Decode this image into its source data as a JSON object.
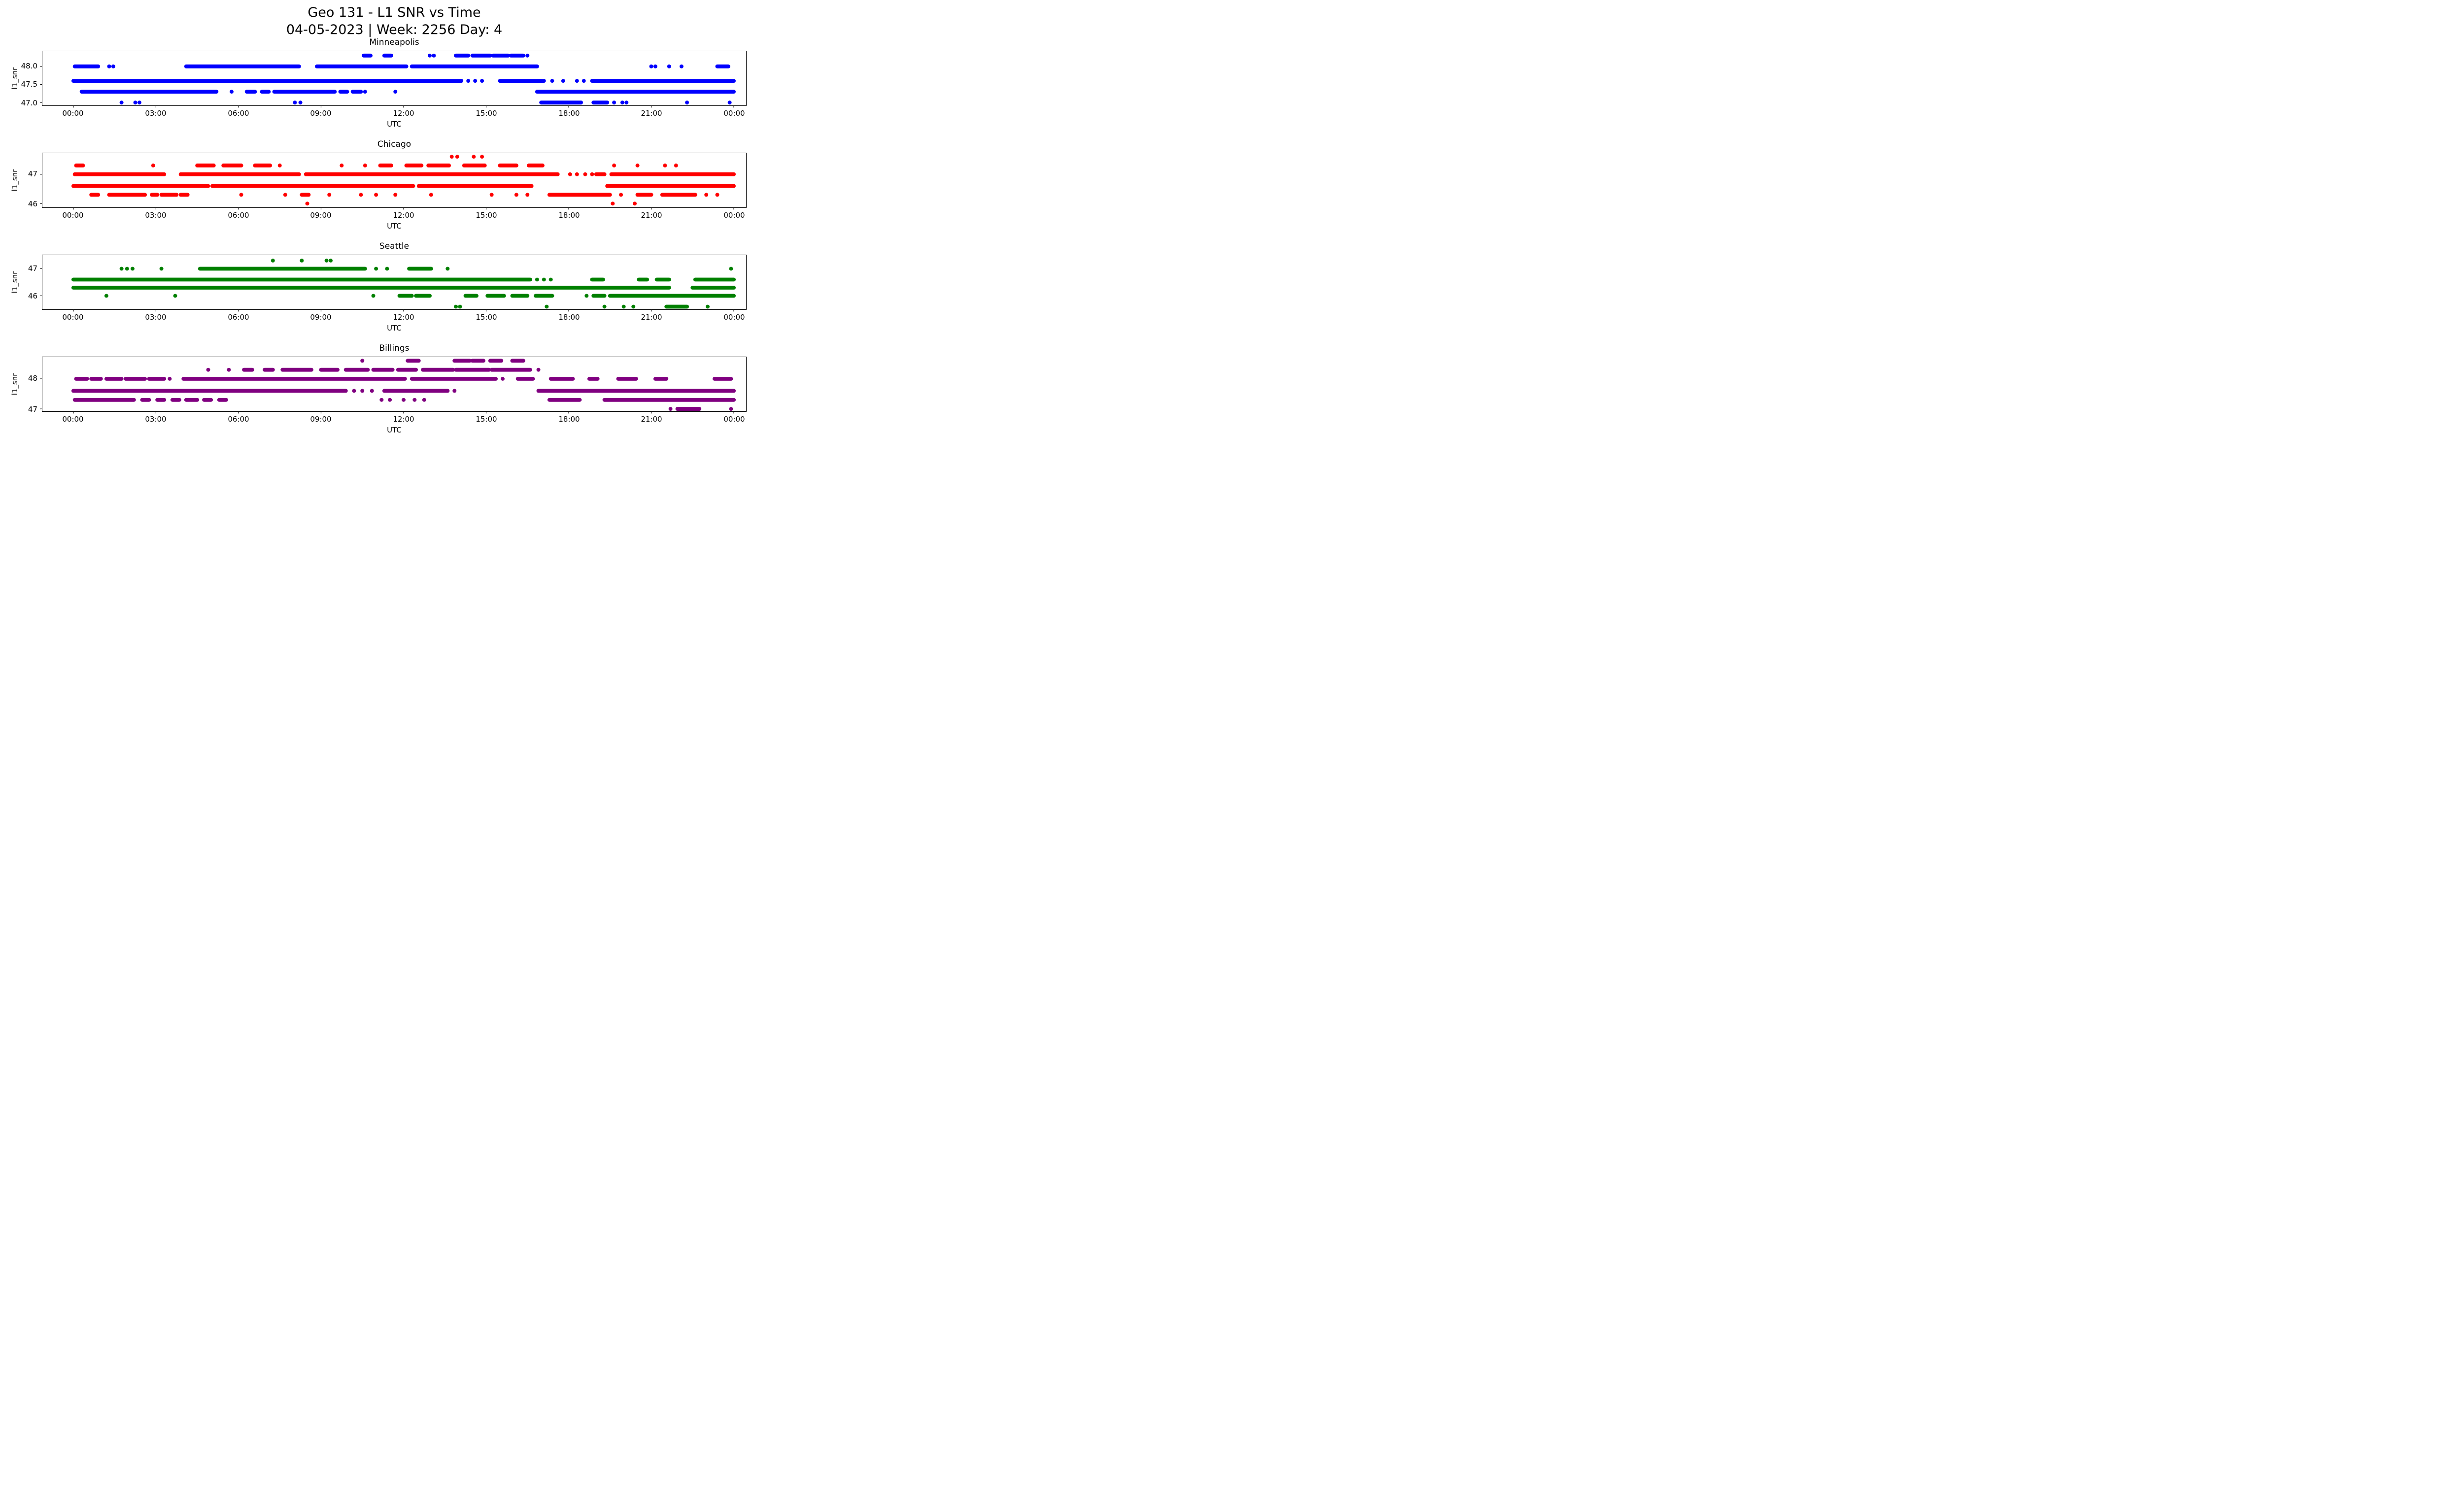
{
  "figure_title": {
    "line1": "Geo 131 - L1 SNR vs Time",
    "line2": "04-05-2023 | Week: 2256 Day: 4"
  },
  "axes_shared": {
    "xlabel": "UTC",
    "ylabel": "l1_snr",
    "xtick_hours": [
      0,
      3,
      6,
      9,
      12,
      15,
      18,
      21,
      24
    ],
    "xtick_labels": [
      "00:00",
      "03:00",
      "06:00",
      "09:00",
      "12:00",
      "15:00",
      "18:00",
      "21:00",
      "00:00"
    ],
    "grid": false,
    "legend": false
  },
  "chart_data": [
    {
      "type": "scatter",
      "title": "Minneapolis",
      "color": "#0000ff",
      "xlabel": "UTC",
      "ylabel": "l1_snr",
      "x_unit": "hours UTC",
      "xlim": [
        -1.13,
        24.45
      ],
      "ylim": [
        46.92,
        48.42
      ],
      "yticks": [
        {
          "value": 48.0,
          "label": "48.0"
        },
        {
          "value": 47.5,
          "label": "47.5"
        },
        {
          "value": 47.0,
          "label": "47.0"
        }
      ],
      "bands": [
        {
          "snr": 48.3,
          "segments": [
            [
              10.55,
              10.8
            ],
            [
              11.3,
              11.55
            ],
            [
              13.9,
              14.35
            ],
            [
              14.5,
              15.15
            ],
            [
              15.25,
              15.8
            ],
            [
              15.9,
              16.35
            ]
          ],
          "dots": [
            12.95,
            13.1,
            16.5
          ]
        },
        {
          "snr": 48.0,
          "segments": [
            [
              0.05,
              0.9
            ],
            [
              4.1,
              8.2
            ],
            [
              8.85,
              12.1
            ],
            [
              12.3,
              16.85
            ],
            [
              23.4,
              23.8
            ]
          ],
          "dots": [
            1.3,
            1.45,
            21.0,
            21.15,
            21.65,
            22.1
          ]
        },
        {
          "snr": 47.6,
          "segments": [
            [
              0.0,
              14.1
            ],
            [
              15.5,
              17.1
            ],
            [
              18.85,
              24.0
            ]
          ],
          "dots": [
            14.35,
            14.6,
            14.85,
            17.4,
            17.8,
            18.3,
            18.55
          ]
        },
        {
          "snr": 47.3,
          "segments": [
            [
              0.3,
              5.2
            ],
            [
              6.3,
              6.6
            ],
            [
              6.85,
              7.1
            ],
            [
              7.3,
              9.5
            ],
            [
              9.7,
              9.95
            ],
            [
              10.15,
              10.45
            ],
            [
              16.85,
              24.0
            ]
          ],
          "dots": [
            5.75,
            10.6,
            11.7
          ]
        },
        {
          "snr": 47.0,
          "segments": [
            [
              17.0,
              18.45
            ],
            [
              18.9,
              19.4
            ]
          ],
          "dots": [
            1.75,
            2.25,
            2.4,
            8.05,
            8.25,
            19.65,
            19.95,
            20.1,
            22.3,
            23.85
          ]
        }
      ]
    },
    {
      "type": "scatter",
      "title": "Chicago",
      "color": "#ff0000",
      "xlabel": "UTC",
      "ylabel": "l1_snr",
      "x_unit": "hours UTC",
      "xlim": [
        -1.13,
        24.45
      ],
      "ylim": [
        45.87,
        47.72
      ],
      "yticks": [
        {
          "value": 47.0,
          "label": "47"
        },
        {
          "value": 46.0,
          "label": "46"
        }
      ],
      "bands": [
        {
          "snr": 47.6,
          "segments": [],
          "dots": [
            13.75,
            13.95,
            14.55,
            14.85
          ]
        },
        {
          "snr": 47.3,
          "segments": [
            [
              0.1,
              0.35
            ],
            [
              4.5,
              5.1
            ],
            [
              5.45,
              6.1
            ],
            [
              6.6,
              7.15
            ],
            [
              11.15,
              11.55
            ],
            [
              12.1,
              12.65
            ],
            [
              12.9,
              13.65
            ],
            [
              14.2,
              14.95
            ],
            [
              15.5,
              16.1
            ],
            [
              16.55,
              17.05
            ]
          ],
          "dots": [
            2.9,
            7.5,
            9.75,
            10.6,
            19.65,
            20.5,
            21.5,
            21.9
          ]
        },
        {
          "snr": 47.0,
          "segments": [
            [
              0.05,
              3.3
            ],
            [
              3.9,
              8.2
            ],
            [
              8.45,
              17.6
            ],
            [
              19.0,
              19.3
            ],
            [
              19.55,
              24.0
            ]
          ],
          "dots": [
            18.05,
            18.3,
            18.6,
            18.85
          ]
        },
        {
          "snr": 46.6,
          "segments": [
            [
              0.0,
              4.9
            ],
            [
              5.05,
              12.35
            ],
            [
              12.55,
              16.65
            ],
            [
              19.4,
              24.0
            ]
          ],
          "dots": []
        },
        {
          "snr": 46.3,
          "segments": [
            [
              0.65,
              0.9
            ],
            [
              1.3,
              2.6
            ],
            [
              2.85,
              3.05
            ],
            [
              3.2,
              3.75
            ],
            [
              3.9,
              4.15
            ],
            [
              8.3,
              8.55
            ],
            [
              17.3,
              19.5
            ],
            [
              20.5,
              21.0
            ],
            [
              21.4,
              22.6
            ]
          ],
          "dots": [
            6.1,
            7.7,
            9.3,
            10.45,
            11.0,
            11.7,
            13.0,
            15.2,
            16.1,
            16.5,
            19.9,
            23.0,
            23.4
          ]
        },
        {
          "snr": 46.0,
          "segments": [],
          "dots": [
            8.5,
            19.6,
            20.4
          ]
        }
      ]
    },
    {
      "type": "scatter",
      "title": "Seattle",
      "color": "#008000",
      "xlabel": "UTC",
      "ylabel": "l1_snr",
      "x_unit": "hours UTC",
      "xlim": [
        -1.13,
        24.45
      ],
      "ylim": [
        45.5,
        47.5
      ],
      "yticks": [
        {
          "value": 47.0,
          "label": "47"
        },
        {
          "value": 46.0,
          "label": "46"
        }
      ],
      "bands": [
        {
          "snr": 47.3,
          "segments": [],
          "dots": [
            7.25,
            8.3,
            9.2,
            9.35
          ]
        },
        {
          "snr": 47.0,
          "segments": [
            [
              4.6,
              10.6
            ],
            [
              12.2,
              13.0
            ]
          ],
          "dots": [
            1.75,
            1.95,
            2.15,
            3.2,
            11.0,
            11.4,
            13.6,
            23.9
          ]
        },
        {
          "snr": 46.6,
          "segments": [
            [
              0.0,
              16.6
            ],
            [
              18.85,
              19.25
            ],
            [
              20.55,
              20.85
            ],
            [
              21.2,
              21.65
            ],
            [
              22.6,
              24.0
            ]
          ],
          "dots": [
            16.85,
            17.1,
            17.35
          ]
        },
        {
          "snr": 46.3,
          "segments": [
            [
              0.0,
              21.65
            ],
            [
              22.5,
              24.0
            ]
          ],
          "dots": []
        },
        {
          "snr": 46.0,
          "segments": [
            [
              11.85,
              12.3
            ],
            [
              12.45,
              12.95
            ],
            [
              14.25,
              14.65
            ],
            [
              15.05,
              15.65
            ],
            [
              15.95,
              16.5
            ],
            [
              16.8,
              17.4
            ],
            [
              18.9,
              19.3
            ],
            [
              19.5,
              24.0
            ]
          ],
          "dots": [
            1.2,
            3.7,
            10.9,
            18.65
          ]
        },
        {
          "snr": 45.6,
          "segments": [
            [
              21.55,
              22.3
            ]
          ],
          "dots": [
            13.9,
            14.05,
            17.2,
            19.3,
            20.0,
            20.35,
            23.05
          ]
        }
      ]
    },
    {
      "type": "scatter",
      "title": "Billings",
      "color": "#800080",
      "xlabel": "UTC",
      "ylabel": "l1_snr",
      "x_unit": "hours UTC",
      "xlim": [
        -1.13,
        24.45
      ],
      "ylim": [
        46.92,
        48.72
      ],
      "yticks": [
        {
          "value": 48.0,
          "label": "48"
        },
        {
          "value": 47.0,
          "label": "47"
        }
      ],
      "bands": [
        {
          "snr": 48.6,
          "segments": [
            [
              12.15,
              12.55
            ],
            [
              13.85,
              14.4
            ],
            [
              14.5,
              14.9
            ],
            [
              15.15,
              15.55
            ],
            [
              15.95,
              16.35
            ]
          ],
          "dots": [
            10.5
          ]
        },
        {
          "snr": 48.3,
          "segments": [
            [
              6.2,
              6.5
            ],
            [
              6.95,
              7.25
            ],
            [
              7.6,
              8.65
            ],
            [
              9.0,
              9.6
            ],
            [
              9.9,
              10.7
            ],
            [
              10.9,
              11.6
            ],
            [
              11.8,
              12.45
            ],
            [
              12.7,
              13.8
            ],
            [
              13.9,
              15.1
            ],
            [
              15.2,
              16.6
            ]
          ],
          "dots": [
            4.9,
            5.65,
            16.9
          ]
        },
        {
          "snr": 48.0,
          "segments": [
            [
              0.1,
              0.5
            ],
            [
              0.65,
              1.0
            ],
            [
              1.2,
              1.75
            ],
            [
              1.9,
              2.6
            ],
            [
              2.75,
              3.3
            ],
            [
              4.0,
              12.05
            ],
            [
              12.3,
              15.35
            ],
            [
              16.15,
              16.7
            ],
            [
              17.35,
              18.15
            ],
            [
              18.75,
              19.05
            ],
            [
              19.8,
              20.45
            ],
            [
              21.15,
              21.55
            ],
            [
              23.3,
              23.9
            ]
          ],
          "dots": [
            3.5,
            15.6
          ]
        },
        {
          "snr": 47.6,
          "segments": [
            [
              0.0,
              9.9
            ],
            [
              11.3,
              13.6
            ],
            [
              16.9,
              24.0
            ]
          ],
          "dots": [
            10.2,
            10.5,
            10.85,
            13.85
          ]
        },
        {
          "snr": 47.3,
          "segments": [
            [
              0.05,
              2.2
            ],
            [
              2.5,
              2.75
            ],
            [
              3.05,
              3.3
            ],
            [
              3.6,
              3.85
            ],
            [
              4.1,
              4.5
            ],
            [
              4.75,
              5.0
            ],
            [
              5.3,
              5.55
            ],
            [
              17.3,
              18.4
            ],
            [
              19.3,
              24.0
            ]
          ],
          "dots": [
            11.2,
            11.5,
            12.0,
            12.4,
            12.75
          ]
        },
        {
          "snr": 47.0,
          "segments": [
            [
              21.95,
              22.75
            ]
          ],
          "dots": [
            21.7,
            23.9
          ]
        }
      ]
    }
  ]
}
